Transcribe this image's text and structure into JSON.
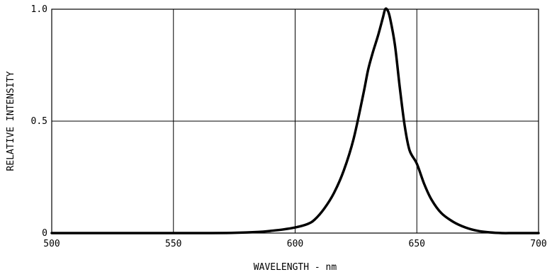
{
  "chart_data": {
    "type": "line",
    "xlabel": "WAVELENGTH - nm",
    "ylabel": "RELATIVE INTENSITY",
    "xlim": [
      500,
      700
    ],
    "ylim": [
      0,
      1.0
    ],
    "x_ticks": [
      {
        "value": 500,
        "label": "500"
      },
      {
        "value": 550,
        "label": "550"
      },
      {
        "value": 600,
        "label": "600"
      },
      {
        "value": 650,
        "label": "650"
      },
      {
        "value": 700,
        "label": "700"
      }
    ],
    "y_ticks": [
      {
        "value": 0,
        "label": "0"
      },
      {
        "value": 0.5,
        "label": "0.5"
      },
      {
        "value": 1.0,
        "label": "1.0"
      }
    ],
    "grid": true,
    "series": [
      {
        "color": "#000000",
        "x": [
          500,
          560,
          575,
          585,
          590,
          595,
          600,
          605,
          608,
          612,
          616,
          620,
          624,
          628,
          630,
          632,
          634,
          636,
          637,
          638,
          639,
          641,
          643,
          645,
          647,
          650,
          653,
          656,
          660,
          665,
          670,
          675,
          680,
          685,
          690,
          700
        ],
        "y": [
          0,
          0,
          0.001,
          0.005,
          0.01,
          0.016,
          0.025,
          0.04,
          0.06,
          0.11,
          0.18,
          0.28,
          0.42,
          0.62,
          0.73,
          0.81,
          0.88,
          0.96,
          1.0,
          0.995,
          0.96,
          0.84,
          0.65,
          0.48,
          0.37,
          0.31,
          0.22,
          0.15,
          0.09,
          0.05,
          0.025,
          0.01,
          0.003,
          0,
          0,
          0
        ]
      }
    ]
  }
}
